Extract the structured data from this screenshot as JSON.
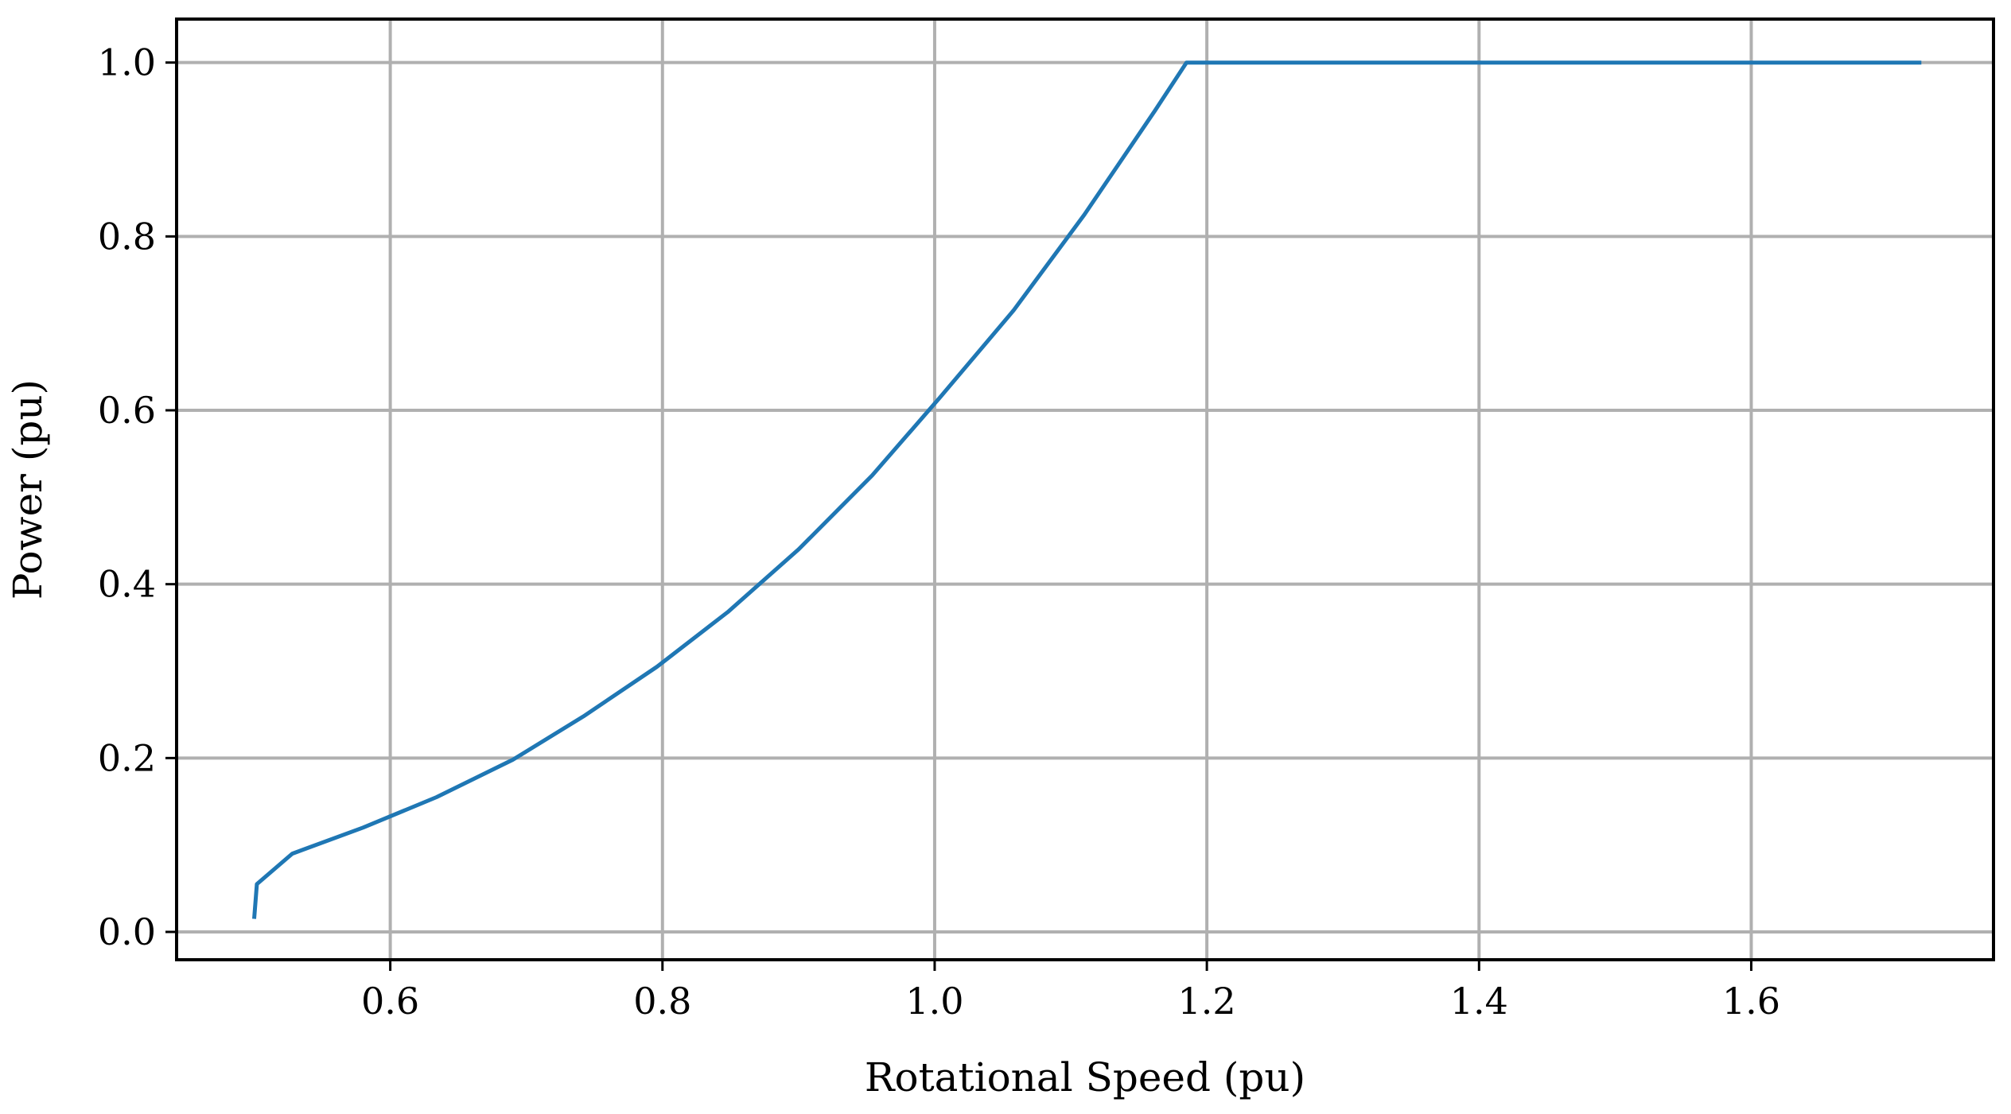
{
  "chart_data": {
    "type": "line",
    "title": "",
    "xlabel": "Rotational Speed (pu)",
    "ylabel": "Power (pu)",
    "xlim": [
      0.443,
      1.778
    ],
    "ylim": [
      -0.032,
      1.05
    ],
    "xticks": [
      0.6,
      0.8,
      1.0,
      1.2,
      1.4,
      1.6
    ],
    "xtick_labels": [
      "0.6",
      "0.8",
      "1.0",
      "1.2",
      "1.4",
      "1.6"
    ],
    "yticks": [
      0.0,
      0.2,
      0.4,
      0.6,
      0.8,
      1.0
    ],
    "ytick_labels": [
      "0.0",
      "0.2",
      "0.4",
      "0.6",
      "0.8",
      "1.0"
    ],
    "grid": true,
    "series": [
      {
        "color": "#1f77b4",
        "x": [
          0.5,
          0.502,
          0.528,
          0.58,
          0.634,
          0.69,
          0.742,
          0.796,
          0.848,
          0.9,
          0.954,
          1.004,
          1.058,
          1.11,
          1.162,
          1.185,
          1.25,
          1.4,
          1.6,
          1.725
        ],
        "y": [
          0.015,
          0.055,
          0.09,
          0.12,
          0.155,
          0.198,
          0.248,
          0.305,
          0.368,
          0.44,
          0.525,
          0.615,
          0.715,
          0.825,
          0.945,
          1.0,
          1.0,
          1.0,
          1.0,
          1.0
        ]
      }
    ]
  }
}
